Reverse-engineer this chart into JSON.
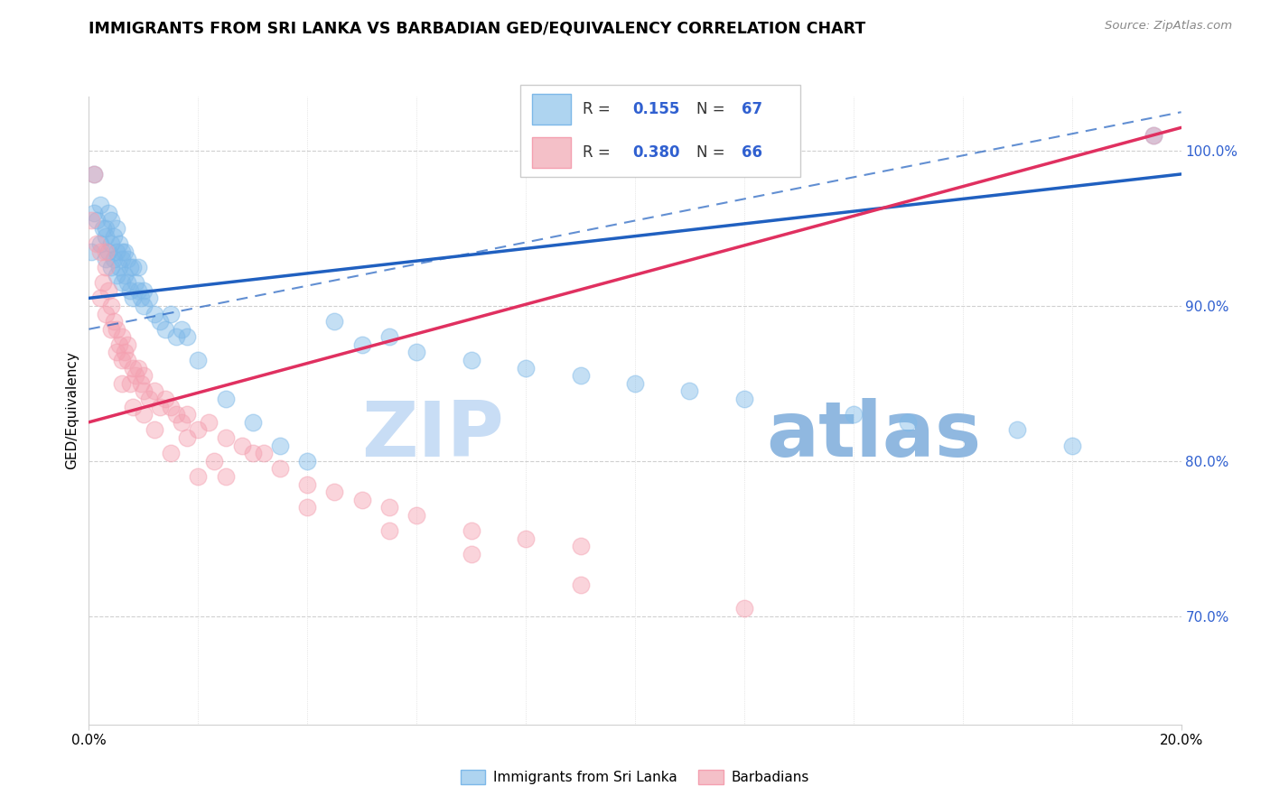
{
  "title": "IMMIGRANTS FROM SRI LANKA VS BARBADIAN GED/EQUIVALENCY CORRELATION CHART",
  "source": "Source: ZipAtlas.com",
  "ylabel": "GED/Equivalency",
  "xmin": 0.0,
  "xmax": 20.0,
  "ymin": 63.0,
  "ymax": 103.5,
  "yticks": [
    70.0,
    80.0,
    90.0,
    100.0
  ],
  "ytick_labels": [
    "70.0%",
    "80.0%",
    "90.0%",
    "100.0%"
  ],
  "legend_sri_lanka": "Immigrants from Sri Lanka",
  "legend_barbadians": "Barbadians",
  "R_sri": 0.155,
  "N_sri": 67,
  "R_bar": 0.38,
  "N_bar": 66,
  "color_blue_scatter": "#7db8e8",
  "color_pink_scatter": "#f4a0b0",
  "color_blue_line": "#2060c0",
  "color_pink_line": "#e03060",
  "color_blue_text": "#3060d0",
  "watermark_zip": "#c8ddf5",
  "watermark_atlas": "#90b8e0",
  "sri_lanka_x": [
    0.05,
    0.1,
    0.1,
    0.15,
    0.2,
    0.2,
    0.25,
    0.3,
    0.3,
    0.3,
    0.35,
    0.35,
    0.4,
    0.4,
    0.4,
    0.45,
    0.45,
    0.5,
    0.5,
    0.5,
    0.55,
    0.55,
    0.6,
    0.6,
    0.6,
    0.65,
    0.65,
    0.7,
    0.7,
    0.75,
    0.75,
    0.8,
    0.8,
    0.85,
    0.9,
    0.9,
    0.95,
    1.0,
    1.0,
    1.1,
    1.2,
    1.3,
    1.4,
    1.5,
    1.6,
    1.7,
    1.8,
    2.0,
    2.5,
    3.0,
    3.5,
    4.0,
    4.5,
    5.0,
    5.5,
    6.0,
    7.0,
    8.0,
    9.0,
    10.0,
    11.0,
    12.0,
    14.0,
    15.0,
    17.0,
    18.0,
    19.5
  ],
  "sri_lanka_y": [
    93.5,
    98.5,
    96.0,
    95.5,
    94.0,
    96.5,
    95.0,
    94.5,
    93.0,
    95.0,
    93.5,
    96.0,
    94.0,
    92.5,
    95.5,
    94.5,
    93.0,
    95.0,
    93.5,
    92.0,
    94.0,
    92.5,
    93.5,
    91.5,
    93.0,
    92.0,
    93.5,
    91.5,
    93.0,
    92.5,
    91.0,
    90.5,
    92.5,
    91.5,
    91.0,
    92.5,
    90.5,
    91.0,
    90.0,
    90.5,
    89.5,
    89.0,
    88.5,
    89.5,
    88.0,
    88.5,
    88.0,
    86.5,
    84.0,
    82.5,
    81.0,
    80.0,
    89.0,
    87.5,
    88.0,
    87.0,
    86.5,
    86.0,
    85.5,
    85.0,
    84.5,
    84.0,
    83.0,
    82.5,
    82.0,
    81.0,
    101.0
  ],
  "barbadian_x": [
    0.05,
    0.1,
    0.15,
    0.2,
    0.2,
    0.25,
    0.3,
    0.3,
    0.35,
    0.4,
    0.4,
    0.45,
    0.5,
    0.5,
    0.55,
    0.6,
    0.6,
    0.65,
    0.7,
    0.7,
    0.75,
    0.8,
    0.85,
    0.9,
    0.95,
    1.0,
    1.0,
    1.1,
    1.2,
    1.3,
    1.4,
    1.5,
    1.6,
    1.7,
    1.8,
    2.0,
    2.2,
    2.5,
    2.8,
    3.0,
    3.5,
    4.0,
    4.5,
    5.0,
    5.5,
    6.0,
    7.0,
    8.0,
    9.0,
    2.5,
    3.2,
    1.5,
    2.0,
    0.8,
    1.2,
    2.3,
    1.8,
    0.6,
    1.0,
    4.0,
    5.5,
    7.0,
    9.0,
    12.0,
    19.5,
    0.3
  ],
  "barbadian_y": [
    95.5,
    98.5,
    94.0,
    90.5,
    93.5,
    91.5,
    92.5,
    89.5,
    91.0,
    90.0,
    88.5,
    89.0,
    88.5,
    87.0,
    87.5,
    88.0,
    86.5,
    87.0,
    86.5,
    87.5,
    85.0,
    86.0,
    85.5,
    86.0,
    85.0,
    84.5,
    85.5,
    84.0,
    84.5,
    83.5,
    84.0,
    83.5,
    83.0,
    82.5,
    83.0,
    82.0,
    82.5,
    81.5,
    81.0,
    80.5,
    79.5,
    78.5,
    78.0,
    77.5,
    77.0,
    76.5,
    75.5,
    75.0,
    74.5,
    79.0,
    80.5,
    80.5,
    79.0,
    83.5,
    82.0,
    80.0,
    81.5,
    85.0,
    83.0,
    77.0,
    75.5,
    74.0,
    72.0,
    70.5,
    101.0,
    93.5
  ],
  "blue_line_x0": 0.0,
  "blue_line_y0": 90.5,
  "blue_line_x1": 20.0,
  "blue_line_y1": 98.5,
  "blue_dash_x0": 0.0,
  "blue_dash_y0": 88.5,
  "blue_dash_x1": 20.0,
  "blue_dash_y1": 102.5,
  "pink_line_x0": 0.0,
  "pink_line_y0": 82.5,
  "pink_line_x1": 20.0,
  "pink_line_y1": 101.5
}
